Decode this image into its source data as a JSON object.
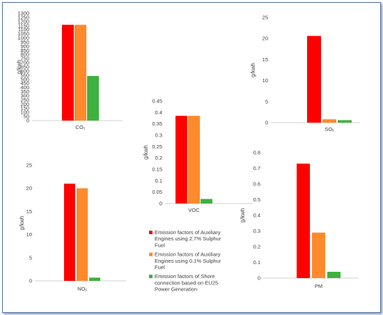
{
  "colors": {
    "series1": "#ff0000",
    "series2": "#ff8a2b",
    "series3": "#3fb13f"
  },
  "legend": [
    {
      "lines": [
        "Emission factors of Auxiliary",
        "Engines using 2.7% Sulphur",
        "Fuel"
      ]
    },
    {
      "lines": [
        "Emission factors of Auxiliary",
        "Engines using 0.1% Sulphur",
        "Fuel"
      ]
    },
    {
      "lines": [
        "Emission factors of Shore",
        "connection based on EU25",
        "Power Generation"
      ]
    }
  ],
  "chart_data": [
    {
      "type": "bar",
      "category": "CO₂",
      "ylabel": "g/kwh",
      "ylim": [
        0,
        1300
      ],
      "yticks": [
        "0",
        "50",
        "100",
        "150",
        "200",
        "250",
        "300",
        "350",
        "400",
        "450",
        "500",
        "550",
        "600",
        "650",
        "700",
        "750",
        "800",
        "850",
        "900",
        "950",
        "1000",
        "1050",
        "1100",
        "1150",
        "1200",
        "1250",
        "1300"
      ],
      "yticks_visible": [
        "0",
        "50",
        "100",
        "150",
        "200",
        "250",
        "300",
        "350",
        "400",
        "450",
        "500",
        "550",
        "600",
        "650",
        "700",
        "750",
        "800",
        "850",
        "900",
        "950",
        "1000",
        "1050",
        "1100",
        "1150",
        "1200",
        "1250",
        "1300"
      ],
      "values": [
        1160,
        1160,
        540
      ]
    },
    {
      "type": "bar",
      "category": "SOₓ",
      "ylabel": "g/kwh",
      "ylim": [
        0,
        25
      ],
      "yticks": [
        "0",
        "5",
        "10",
        "15",
        "20",
        "25"
      ],
      "values": [
        20.6,
        0.8,
        0.6
      ]
    },
    {
      "type": "bar",
      "category": "VOC",
      "ylabel": "g/kwh",
      "ylim": [
        0,
        0.45
      ],
      "yticks": [
        "0",
        "0.05",
        "0.1",
        "0.15",
        "0.2",
        "0.25",
        "0.3",
        "0.35",
        "0.4",
        "0.45"
      ],
      "values": [
        0.385,
        0.385,
        0.02
      ]
    },
    {
      "type": "bar",
      "category": "NOₓ",
      "ylabel": "g/kwh",
      "ylim": [
        0,
        25
      ],
      "yticks": [
        "0",
        "5",
        "10",
        "15",
        "20",
        "25"
      ],
      "values": [
        21,
        20,
        0.7
      ]
    },
    {
      "type": "bar",
      "category": "PM",
      "ylabel": "g/kwh",
      "ylim": [
        0,
        0.8
      ],
      "yticks": [
        "0",
        "0.1",
        "0.2",
        "0.3",
        "0.4",
        "0.5",
        "0.6",
        "0.7",
        "0.8"
      ],
      "values": [
        0.73,
        0.29,
        0.04
      ]
    }
  ]
}
